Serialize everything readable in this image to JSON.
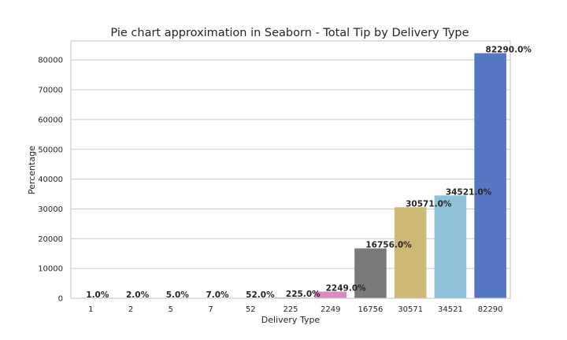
{
  "chart_data": {
    "type": "bar",
    "title": "Pie chart approximation in Seaborn - Total Tip by Delivery Type",
    "xlabel": "Delivery Type",
    "ylabel": "Percentage",
    "categories": [
      "1",
      "2",
      "5",
      "7",
      "52",
      "225",
      "2249",
      "16756",
      "30571",
      "34521",
      "82290"
    ],
    "values": [
      1,
      2,
      5,
      7,
      52,
      225,
      2249,
      16756,
      30571,
      34521,
      82290
    ],
    "data_labels": [
      "1.0%",
      "2.0%",
      "5.0%",
      "7.0%",
      "52.0%",
      "225.0%",
      "2249.0%",
      "16756.0%",
      "30571.0%",
      "34521.0%",
      "82290.0%"
    ],
    "colors": [
      "#4c72b0",
      "#dd8452",
      "#55a868",
      "#c44e52",
      "#8172b3",
      "#937860",
      "#da8bc3",
      "#7a7a7a",
      "#ccb974",
      "#8ec1da",
      "#5677c4"
    ],
    "yticks": [
      0,
      10000,
      20000,
      30000,
      40000,
      50000,
      60000,
      70000,
      80000
    ],
    "ylim": [
      0,
      86404
    ],
    "grid": true
  }
}
